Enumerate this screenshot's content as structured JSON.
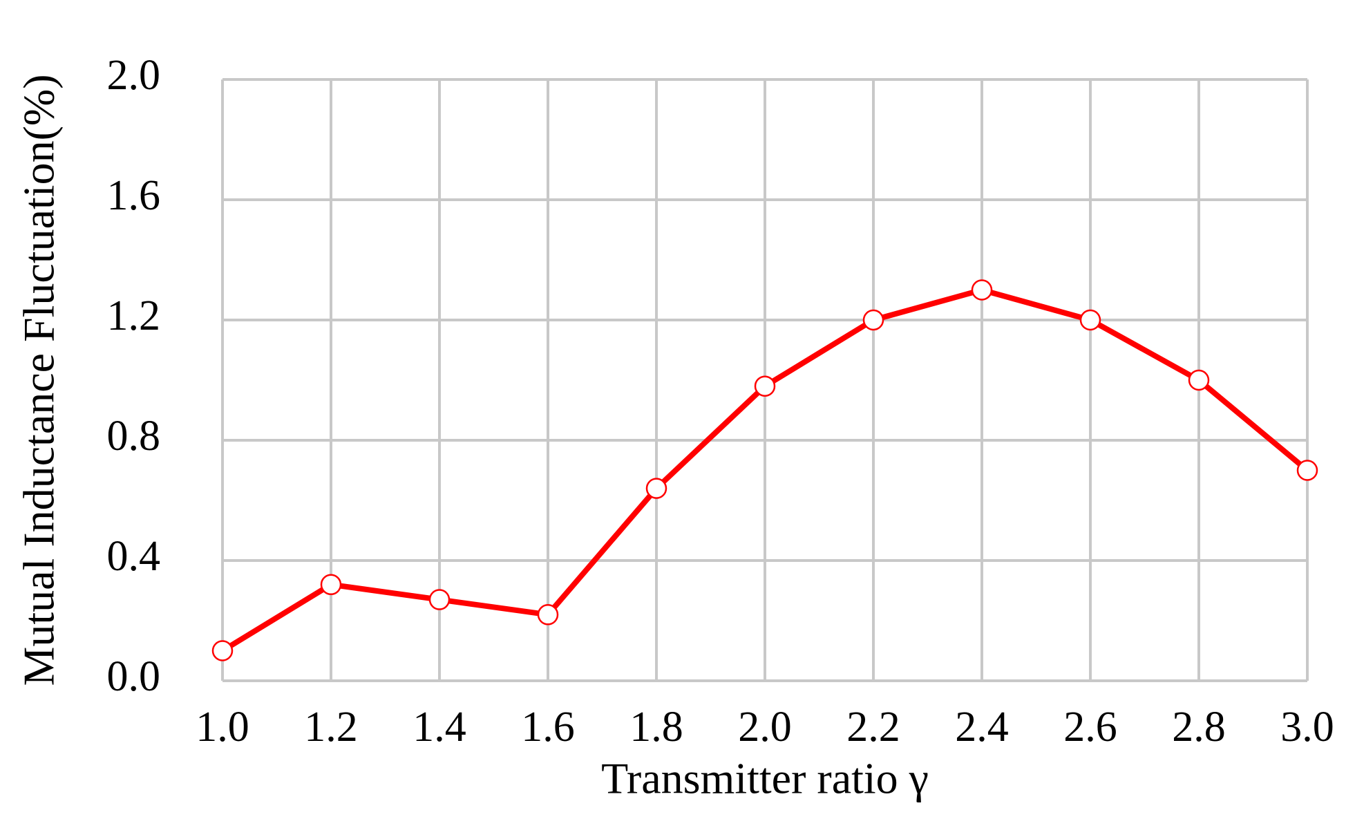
{
  "chart_data": {
    "type": "line",
    "x_label": "Transmitter ratio γ",
    "y_label": "Mutual Inductance Fluctuation(%)",
    "x": [
      1.0,
      1.2,
      1.4,
      1.6,
      1.8,
      2.0,
      2.2,
      2.4,
      2.6,
      2.8,
      3.0
    ],
    "series": [
      {
        "color": "#ff0000",
        "values": [
          0.1,
          0.32,
          0.27,
          0.22,
          0.64,
          0.98,
          1.2,
          1.3,
          1.2,
          1.0,
          0.7
        ]
      }
    ],
    "xlim": [
      1.0,
      3.0
    ],
    "xticks": [
      {
        "value": 1,
        "label": "1.0"
      },
      1.2,
      1.4,
      1.6,
      1.8,
      {
        "value": 2,
        "label": "2.0"
      },
      2.2,
      2.4,
      2.6,
      2.8,
      {
        "value": 3,
        "label": "3.0"
      }
    ],
    "ylim": [
      0,
      2.0
    ],
    "yticks": [
      {
        "value": 0,
        "label": "0.0"
      },
      0.4,
      0.8,
      1.2,
      1.6,
      {
        "value": 2,
        "label": "2.0"
      }
    ],
    "grid": true
  }
}
